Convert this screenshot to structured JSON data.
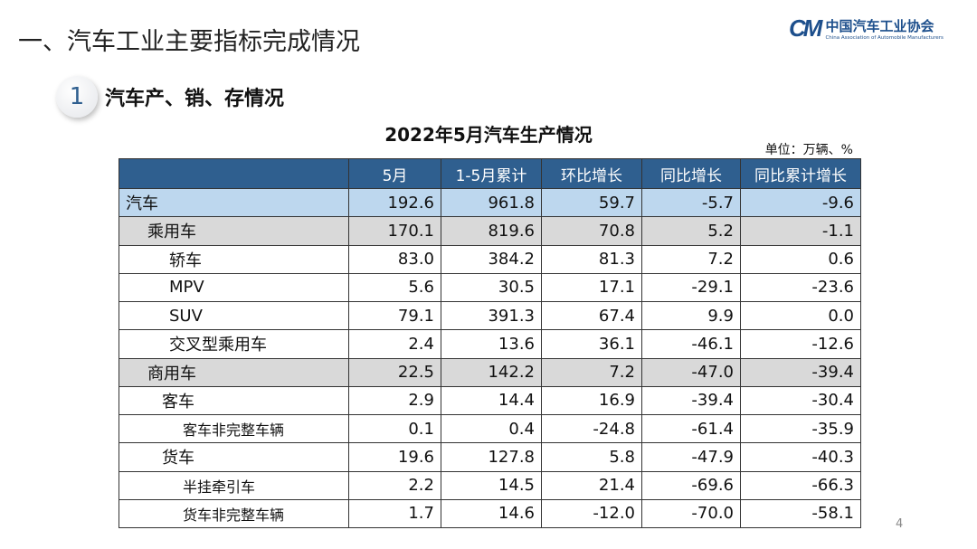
{
  "slide": {
    "title": "一、汽车工业主要指标完成情况",
    "page": "4"
  },
  "logo": {
    "mark": "CM",
    "cn": "中国汽车工业协会",
    "en": "China Association of Automobile Manufacturers"
  },
  "section": {
    "number": "1",
    "title": "汽车产、销、存情况"
  },
  "table": {
    "caption": "2022年5月汽车生产情况",
    "unit": "单位：万辆、%",
    "headers": [
      "",
      "5月",
      "1-5月累计",
      "环比增长",
      "同比增长",
      "同比累计增长"
    ],
    "rows": [
      {
        "label": "汽车",
        "values": [
          "192.6",
          "961.8",
          "59.7",
          "-5.7",
          "-9.6"
        ]
      },
      {
        "label": "乘用车",
        "values": [
          "170.1",
          "819.6",
          "70.8",
          "5.2",
          "-1.1"
        ]
      },
      {
        "label": "轿车",
        "values": [
          "83.0",
          "384.2",
          "81.3",
          "7.2",
          "0.6"
        ]
      },
      {
        "label": "MPV",
        "values": [
          "5.6",
          "30.5",
          "17.1",
          "-29.1",
          "-23.6"
        ]
      },
      {
        "label": "SUV",
        "values": [
          "79.1",
          "391.3",
          "67.4",
          "9.9",
          "0.0"
        ]
      },
      {
        "label": "交叉型乘用车",
        "values": [
          "2.4",
          "13.6",
          "36.1",
          "-46.1",
          "-12.6"
        ]
      },
      {
        "label": "商用车",
        "values": [
          "22.5",
          "142.2",
          "7.2",
          "-47.0",
          "-39.4"
        ]
      },
      {
        "label": "客车",
        "values": [
          "2.9",
          "14.4",
          "16.9",
          "-39.4",
          "-30.4"
        ]
      },
      {
        "label": "客车非完整车辆",
        "values": [
          "0.1",
          "0.4",
          "-24.8",
          "-61.4",
          "-35.9"
        ]
      },
      {
        "label": "货车",
        "values": [
          "19.6",
          "127.8",
          "5.8",
          "-47.9",
          "-40.3"
        ]
      },
      {
        "label": "半挂牵引车",
        "values": [
          "2.2",
          "14.5",
          "21.4",
          "-69.6",
          "-66.3"
        ]
      },
      {
        "label": "货车非完整车辆",
        "values": [
          "1.7",
          "14.6",
          "-12.0",
          "-70.0",
          "-58.1"
        ]
      }
    ]
  },
  "colors": {
    "header": "#2f5f8f",
    "total_row": "#bdd7ee",
    "category_row": "#d9d9d9",
    "brand": "#1d4f8c"
  }
}
